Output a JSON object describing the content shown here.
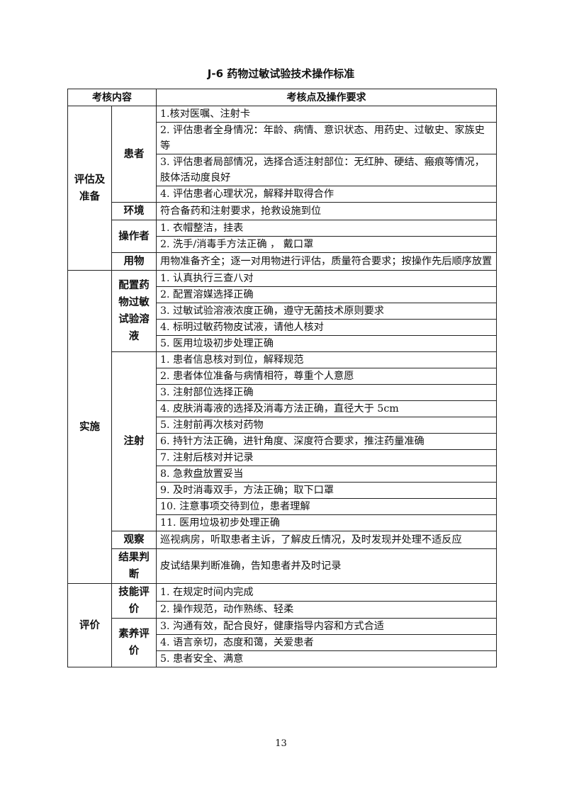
{
  "title": "J-6  药物过敏试验技术操作标准",
  "header": {
    "col1": "考核内容",
    "col2": "考核点及操作要求"
  },
  "sections": [
    {
      "label": "评估及准备",
      "groups": [
        {
          "label": "患者",
          "items": [
            "1.核对医嘱、注射卡",
            "2. 评估患者全身情况：年龄、病情、意识状态、用药史、过敏史、家族史等",
            "3. 评估患者局部情况，选择合适注射部位：无红肿、硬结、瘢痕等情况，肢体活动度良好",
            "4. 评估患者心理状况，解释并取得合作"
          ]
        },
        {
          "label": "环境",
          "items": [
            "符合备药和注射要求，抢救设施到位"
          ]
        },
        {
          "label": "操作者",
          "items": [
            "1. 衣帽整洁，挂表",
            "2. 洗手/消毒手方法正确 ， 戴口罩"
          ]
        },
        {
          "label": "用物",
          "items": [
            "用物准备齐全；逐一对用物进行评估，质量符合要求；按操作先后顺序放置"
          ]
        }
      ]
    },
    {
      "label": "实施",
      "groups": [
        {
          "label": "配置药物过敏试验溶液",
          "items": [
            "1. 认真执行三查八对",
            "2. 配置溶媒选择正确",
            "3. 过敏试验溶液浓度正确，遵守无菌技术原则要求",
            "4. 标明过敏药物皮试液，请他人核对",
            "5. 医用垃圾初步处理正确"
          ]
        },
        {
          "label": "注射",
          "items": [
            "1. 患者信息核对到位，解释规范",
            "2. 患者体位准备与病情相符，尊重个人意愿",
            "3. 注射部位选择正确",
            "4. 皮肤消毒液的选择及消毒方法正确，直径大于 5cm",
            "5. 注射前再次核对药物",
            "6. 持针方法正确，进针角度、深度符合要求，推注药量准确",
            "7. 注射后核对并记录",
            "8. 急救盘放置妥当",
            "9. 及时消毒双手，方法正确；取下口罩",
            "10. 注意事项交待到位，患者理解",
            "11. 医用垃圾初步处理正确"
          ]
        },
        {
          "label": "观察",
          "items": [
            "巡视病房，听取患者主诉，了解皮丘情况，及时发现并处理不适反应"
          ]
        },
        {
          "label": "结果判断",
          "items": [
            "皮试结果判断准确，告知患者并及时记录"
          ]
        }
      ]
    },
    {
      "label": "评价",
      "groups": [
        {
          "label": "技能评价",
          "items": [
            "1. 在规定时间内完成",
            "2. 操作规范，动作熟练、轻柔"
          ]
        },
        {
          "label": "素养评价",
          "items": [
            "3. 沟通有效，配合良好，健康指导内容和方式合适",
            "4. 语言亲切，态度和蔼，关爱患者",
            "5. 患者安全、满意"
          ]
        }
      ]
    }
  ],
  "page_number": "13"
}
